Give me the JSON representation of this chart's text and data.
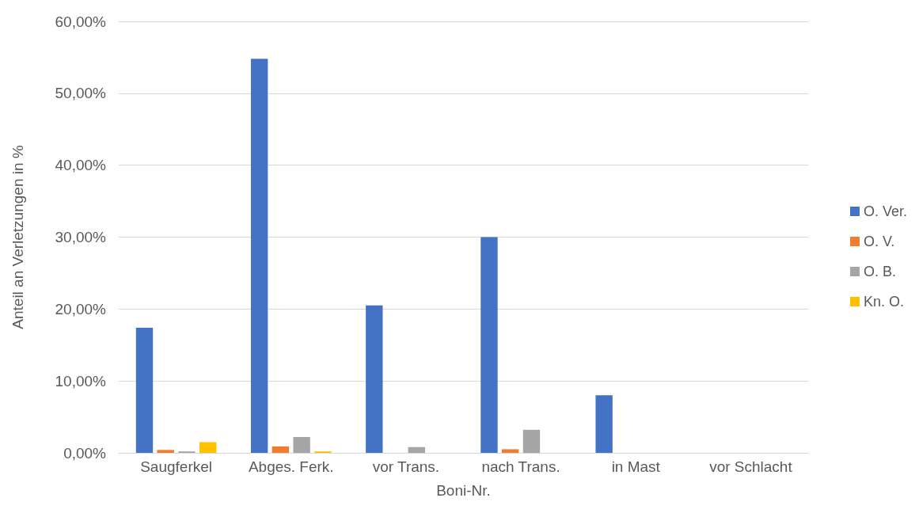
{
  "chart_data": {
    "type": "bar",
    "xlabel": "Boni-Nr.",
    "ylabel": "Anteil an Verletzungen in %",
    "categories": [
      "Saugferkel",
      "Abges. Ferk.",
      "vor Trans.",
      "nach Trans.",
      "in Mast",
      "vor Schlacht"
    ],
    "series": [
      {
        "name": "O. Ver.",
        "color": "#4472c4",
        "values": [
          17.4,
          54.8,
          20.5,
          30.0,
          8.0,
          0
        ]
      },
      {
        "name": "O. V.",
        "color": "#ed7d31",
        "values": [
          0.4,
          0.9,
          0,
          0.5,
          0,
          0
        ]
      },
      {
        "name": "O. B.",
        "color": "#a5a5a5",
        "values": [
          0.2,
          2.2,
          0.8,
          3.2,
          0,
          0
        ]
      },
      {
        "name": "Kn. O.",
        "color": "#ffc000",
        "values": [
          1.5,
          0.2,
          0,
          0,
          0,
          0
        ]
      }
    ],
    "ylim": [
      0,
      60
    ],
    "yticks": [
      {
        "value": 0,
        "label": "0,00%"
      },
      {
        "value": 10,
        "label": "10,00%"
      },
      {
        "value": 20,
        "label": "20,00%"
      },
      {
        "value": 30,
        "label": "30,00%"
      },
      {
        "value": 40,
        "label": "40,00%"
      },
      {
        "value": 50,
        "label": "50,00%"
      },
      {
        "value": 60,
        "label": "60,00%"
      }
    ],
    "grid": "y",
    "legend": "right"
  }
}
